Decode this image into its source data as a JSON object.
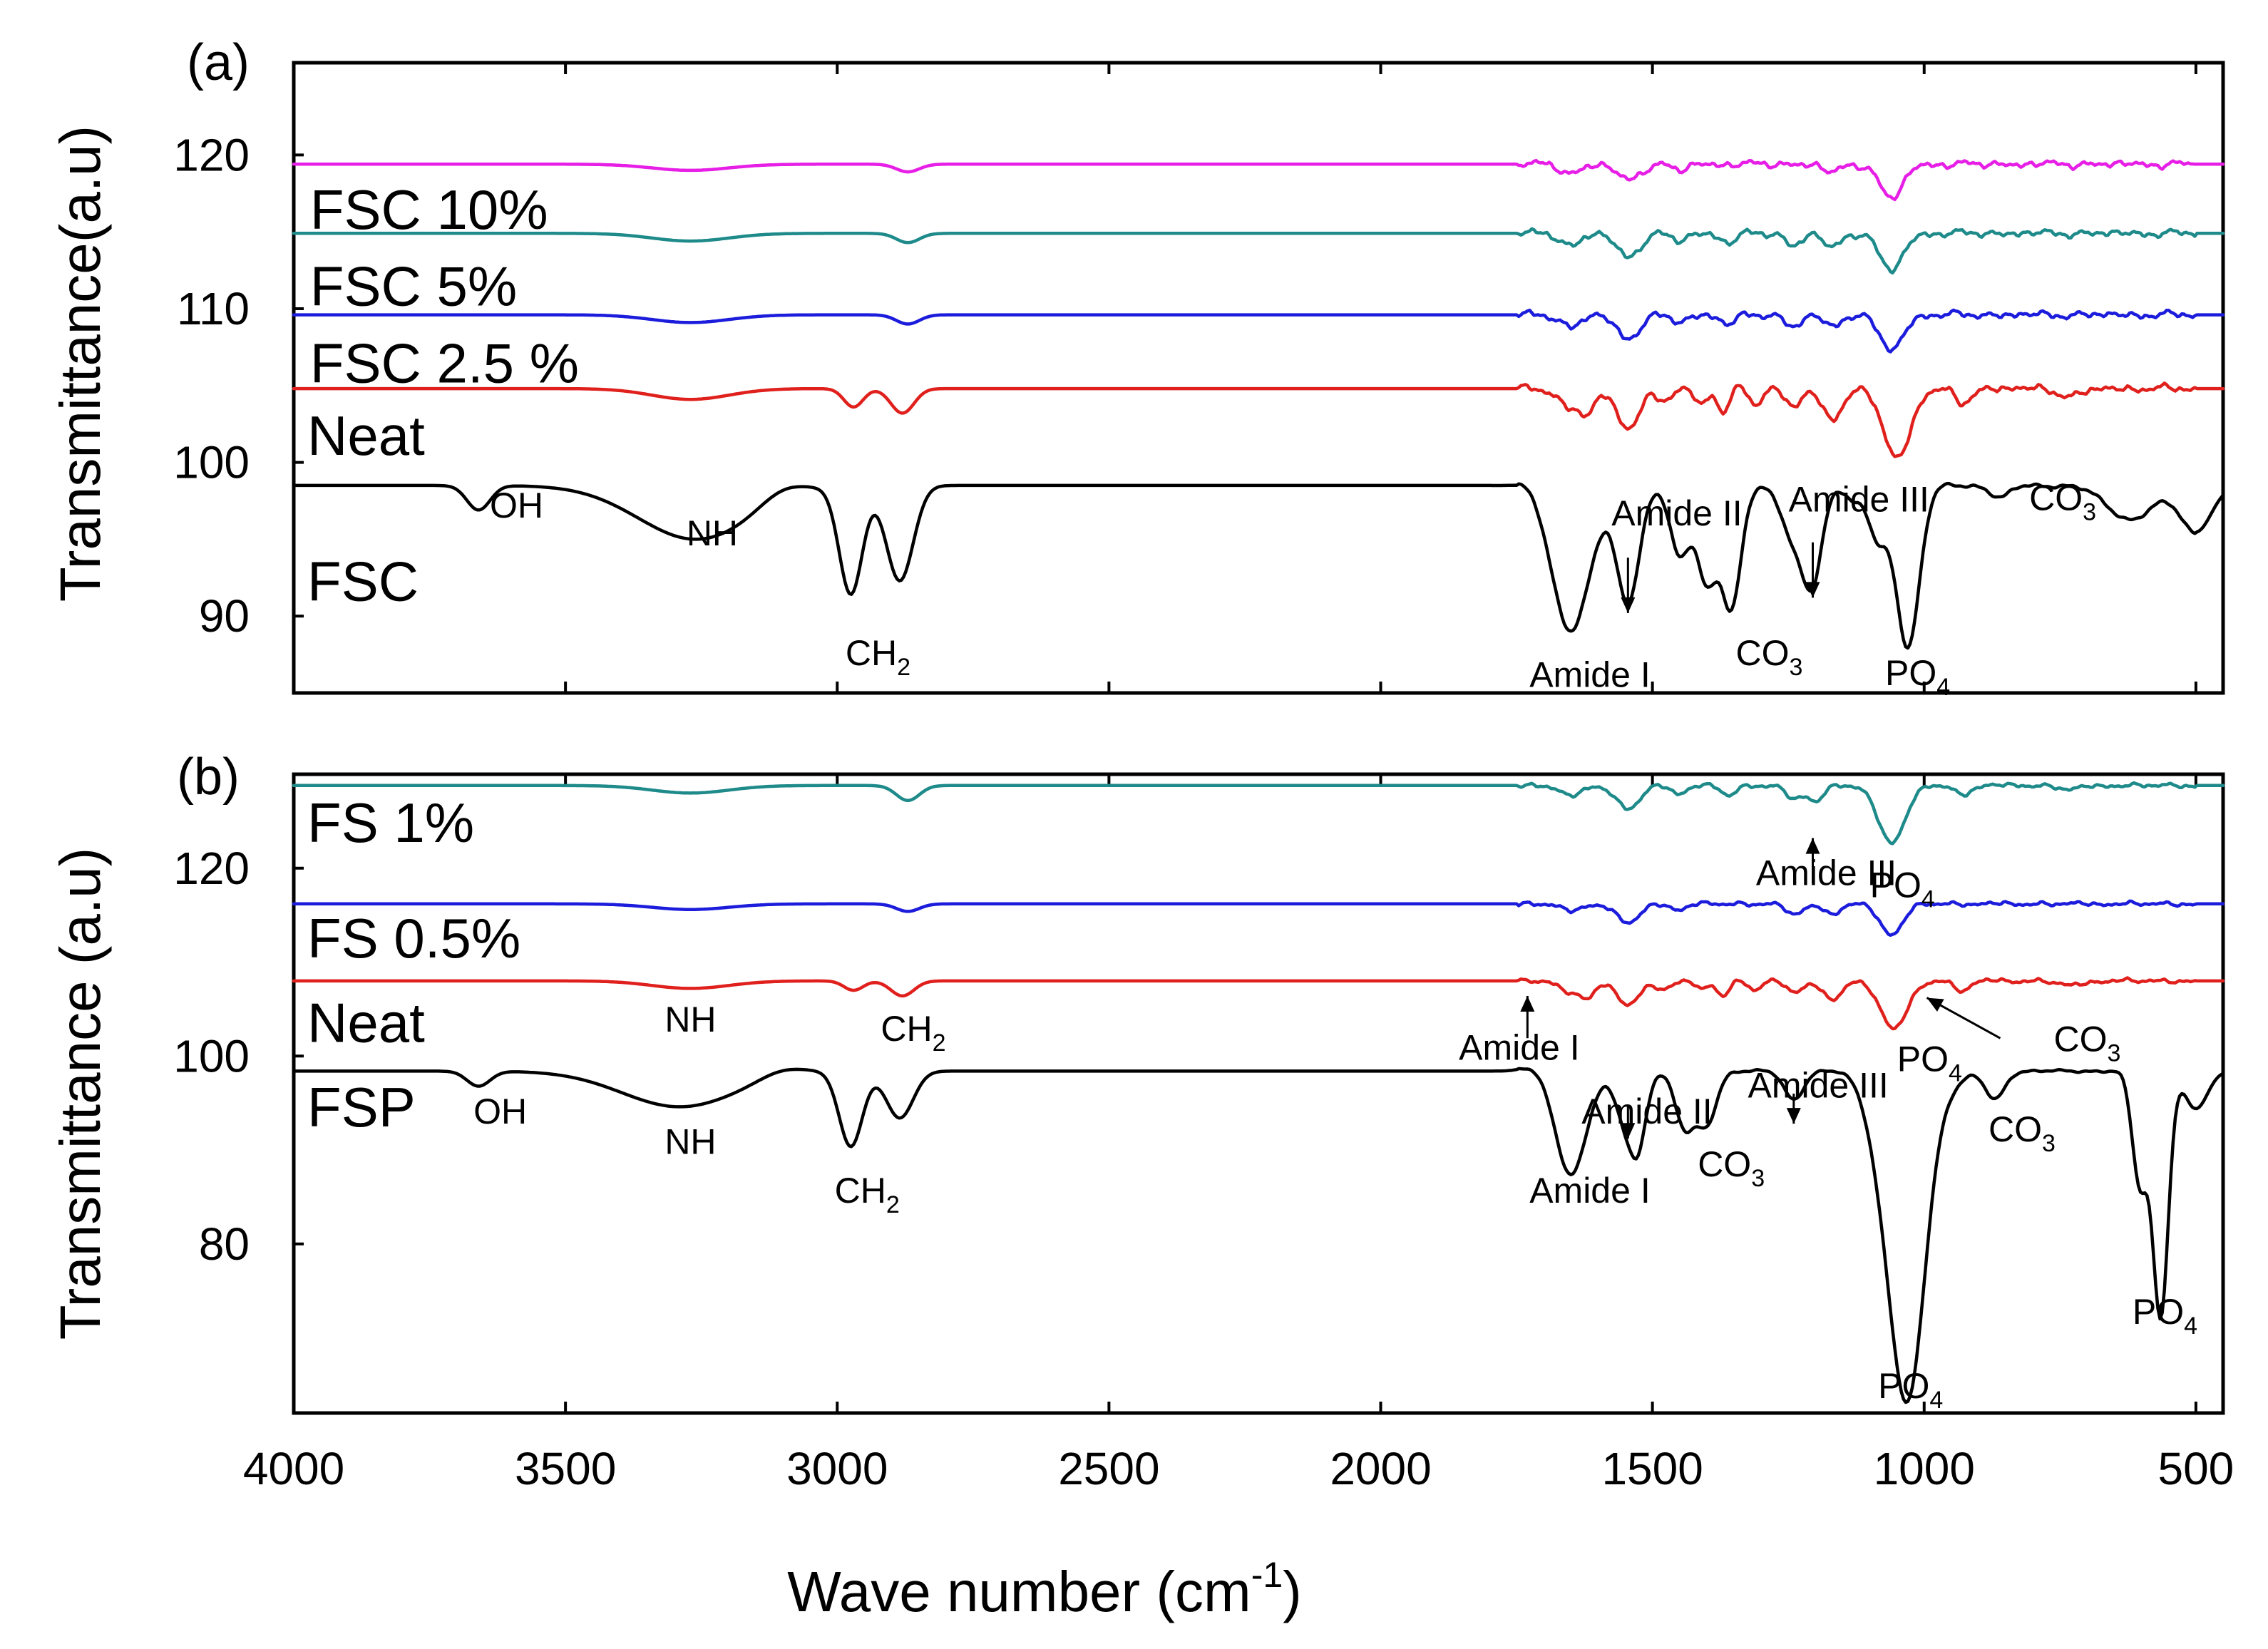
{
  "chart_data": [
    {
      "type": "line",
      "panel_label": "(a)",
      "xlabel": "Wave number (cm-1)",
      "xlabel_main": "Wave number (cm",
      "xlabel_sup": "-1",
      "xlabel_close": ")",
      "ylabel": "Transmittance(a.u)",
      "xlim": [
        4000,
        450
      ],
      "ylim": [
        85,
        126
      ],
      "x_ticks": [
        4000,
        3500,
        3000,
        2500,
        2000,
        1500,
        1000,
        500
      ],
      "y_ticks": [
        90,
        100,
        110,
        120
      ],
      "series": [
        {
          "name": "FSC",
          "label": "FSC",
          "color": "#000000",
          "base": 98.5,
          "label_y": 91,
          "label_x": 3975,
          "bands": [
            [
              3660,
              1.6,
              30
            ],
            [
              3260,
              3.5,
              150
            ],
            [
              3100,
              -0.8,
              60
            ],
            [
              2975,
              7,
              30
            ],
            [
              2885,
              6.2,
              35
            ],
            [
              1720,
              -0.5,
              30
            ],
            [
              1650,
              9.5,
              50
            ],
            [
              1545,
              7.5,
              30
            ],
            [
              1450,
              4.5,
              25
            ],
            [
              1400,
              6.3,
              25
            ],
            [
              1355,
              8,
              25
            ],
            [
              1240,
              3.5,
              30
            ],
            [
              1205,
              5.8,
              25
            ],
            [
              1130,
              1,
              20
            ],
            [
              1030,
              10.5,
              30
            ],
            [
              1085,
              3.5,
              25
            ],
            [
              860,
              0.8,
              25
            ],
            [
              620,
              2.2,
              60
            ],
            [
              500,
              3,
              40
            ]
          ]
        },
        {
          "name": "Neat",
          "label": "Neat",
          "color": "#e0201c",
          "base": 104.8,
          "label_y": 100.5,
          "label_x": 3975,
          "bands": [
            [
              3270,
              0.7,
              100
            ],
            [
              2970,
              1.2,
              25
            ],
            [
              2880,
              1.6,
              30
            ],
            [
              1655,
              1.2,
              25
            ],
            [
              1620,
              1.6,
              20
            ],
            [
              1545,
              2.5,
              30
            ],
            [
              1480,
              0.8,
              20
            ],
            [
              1410,
              1,
              15
            ],
            [
              1370,
              1.6,
              15
            ],
            [
              1310,
              1,
              15
            ],
            [
              1240,
              1.2,
              20
            ],
            [
              1170,
              2,
              25
            ],
            [
              1050,
              4.5,
              35
            ],
            [
              930,
              1,
              20
            ],
            [
              730,
              0.5,
              30
            ]
          ]
        },
        {
          "name": "FSC 2.5 %",
          "label": "FSC 2.5 %",
          "color": "#1c1cdc",
          "base": 109.6,
          "label_y": 105.2,
          "label_x": 3970,
          "bands": [
            [
              3270,
              0.5,
              100
            ],
            [
              2870,
              0.6,
              30
            ],
            [
              1650,
              0.8,
              25
            ],
            [
              1545,
              1.5,
              30
            ],
            [
              1450,
              0.5,
              20
            ],
            [
              1360,
              0.6,
              20
            ],
            [
              1240,
              0.8,
              20
            ],
            [
              1170,
              0.8,
              20
            ],
            [
              1060,
              2.3,
              30
            ]
          ]
        },
        {
          "name": "FSC 5%",
          "label": "FSC 5%",
          "color": "#1e8a8a",
          "base": 114.9,
          "label_y": 110.2,
          "label_x": 3970,
          "bands": [
            [
              3270,
              0.5,
              100
            ],
            [
              2870,
              0.6,
              30
            ],
            [
              1650,
              0.8,
              25
            ],
            [
              1545,
              1.5,
              30
            ],
            [
              1450,
              0.5,
              20
            ],
            [
              1360,
              0.6,
              20
            ],
            [
              1240,
              0.8,
              20
            ],
            [
              1170,
              1,
              20
            ],
            [
              1060,
              2.4,
              30
            ]
          ]
        },
        {
          "name": "FSC 10%",
          "label": "FSC 10%",
          "color": "#e61ee6",
          "base": 119.4,
          "label_y": 115.2,
          "label_x": 3970,
          "bands": [
            [
              3270,
              0.4,
              100
            ],
            [
              2870,
              0.5,
              30
            ],
            [
              1650,
              0.6,
              25
            ],
            [
              1545,
              1,
              30
            ],
            [
              1450,
              0.4,
              20
            ],
            [
              1170,
              0.6,
              20
            ],
            [
              1060,
              2.2,
              30
            ]
          ]
        }
      ],
      "annotations": [
        {
          "text": "OH",
          "x": 3590,
          "y": 96.4
        },
        {
          "text": "NH",
          "x": 3230,
          "y": 94.6
        },
        {
          "text": "CH",
          "sub": "2",
          "x": 2925,
          "y": 86.8
        },
        {
          "text": "Amide II",
          "x": 1455,
          "y": 95.9
        },
        {
          "text": "Amide III",
          "x": 1120,
          "y": 96.8
        },
        {
          "text": "CO",
          "sub": "3",
          "x": 745,
          "y": 96.9
        },
        {
          "text": "Amide I",
          "x": 1615,
          "y": 85.4
        },
        {
          "text": "CO",
          "sub": "3",
          "x": 1285,
          "y": 86.8
        },
        {
          "text": "PO",
          "sub": "4",
          "x": 1012,
          "y": 85.5
        }
      ],
      "arrows": [
        {
          "from": [
            1545,
            93.8
          ],
          "to": [
            1545,
            90.2
          ]
        },
        {
          "from": [
            1205,
            94.8
          ],
          "to": [
            1205,
            91.2
          ]
        }
      ]
    },
    {
      "type": "line",
      "panel_label": "(b)",
      "xlabel": "Wave number (cm-1)",
      "ylabel": "Transmittance (a.u)",
      "xlim": [
        4000,
        450
      ],
      "ylim": [
        62,
        130
      ],
      "x_ticks": [
        4000,
        3500,
        3000,
        2500,
        2000,
        1500,
        1000,
        500
      ],
      "y_ticks": [
        80,
        100,
        120
      ],
      "series": [
        {
          "name": "FSP",
          "label": "FSP",
          "color": "#000000",
          "base": 98.4,
          "label_y": 92.5,
          "label_x": 3975,
          "bands": [
            [
              3660,
              1.6,
              30
            ],
            [
              3290,
              3.8,
              150
            ],
            [
              3100,
              -0.8,
              60
            ],
            [
              2975,
              8,
              30
            ],
            [
              2885,
              5,
              35
            ],
            [
              1720,
              -0.5,
              30
            ],
            [
              1650,
              11,
              40
            ],
            [
              1545,
              6,
              30
            ],
            [
              1525,
              5,
              20
            ],
            [
              1440,
              6,
              25
            ],
            [
              1400,
              5.5,
              25
            ],
            [
              1240,
              3,
              25
            ],
            [
              1030,
              34,
              45
            ],
            [
              1080,
              6,
              40
            ],
            [
              870,
              3,
              25
            ],
            [
              960,
              1.5,
              40
            ],
            [
              603,
              12,
              20
            ],
            [
              565,
              26,
              20
            ],
            [
              500,
              4,
              30
            ]
          ]
        },
        {
          "name": "Neat",
          "label": "Neat",
          "color": "#e0201c",
          "base": 108,
          "label_y": 101.5,
          "label_x": 3975,
          "bands": [
            [
              3270,
              0.8,
              100
            ],
            [
              2970,
              1,
              25
            ],
            [
              2880,
              1.6,
              30
            ],
            [
              1655,
              1.2,
              25
            ],
            [
              1620,
              1.6,
              20
            ],
            [
              1545,
              2.5,
              30
            ],
            [
              1480,
              0.8,
              20
            ],
            [
              1410,
              1,
              15
            ],
            [
              1370,
              1.6,
              15
            ],
            [
              1310,
              1,
              15
            ],
            [
              1240,
              1.2,
              20
            ],
            [
              1170,
              2,
              25
            ],
            [
              1055,
              5,
              35
            ],
            [
              930,
              1,
              20
            ],
            [
              730,
              0.5,
              30
            ]
          ]
        },
        {
          "name": "FS 0.5%",
          "label": "FS 0.5%",
          "color": "#1c1cdc",
          "base": 116.2,
          "label_y": 110.5,
          "label_x": 3975,
          "bands": [
            [
              3270,
              0.6,
              100
            ],
            [
              2870,
              0.8,
              30
            ],
            [
              1650,
              0.8,
              25
            ],
            [
              1545,
              2,
              30
            ],
            [
              1450,
              0.6,
              20
            ],
            [
              1240,
              1.2,
              20
            ],
            [
              1170,
              1.2,
              20
            ],
            [
              1060,
              3.2,
              30
            ]
          ]
        },
        {
          "name": "FS 1%",
          "label": "FS 1%",
          "color": "#1e8a8a",
          "base": 128.8,
          "label_y": 122.8,
          "label_x": 3975,
          "bands": [
            [
              3270,
              0.8,
              100
            ],
            [
              2870,
              1.6,
              30
            ],
            [
              1650,
              1.2,
              25
            ],
            [
              1545,
              2.5,
              30
            ],
            [
              1450,
              0.8,
              20
            ],
            [
              1360,
              1,
              20
            ],
            [
              1240,
              1.5,
              20
            ],
            [
              1200,
              1.6,
              20
            ],
            [
              1060,
              6,
              35
            ],
            [
              930,
              1,
              20
            ],
            [
              730,
              0.4,
              30
            ]
          ]
        }
      ],
      "annotations": [
        {
          "text": "Amide III",
          "x": 1180,
          "y": 118.2
        },
        {
          "text": "PO",
          "sub": "4",
          "x": 1040,
          "y": 116.9
        },
        {
          "text": "NH",
          "x": 3270,
          "y": 102.6
        },
        {
          "text": "CH",
          "sub": "2",
          "x": 2860,
          "y": 101.6
        },
        {
          "text": "Amide I",
          "x": 1745,
          "y": 99.6
        },
        {
          "text": "PO",
          "sub": "4",
          "x": 990,
          "y": 98.4
        },
        {
          "text": "CO",
          "sub": "3",
          "x": 700,
          "y": 100.5
        },
        {
          "text": "OH",
          "x": 3620,
          "y": 92.8
        },
        {
          "text": "NH",
          "x": 3270,
          "y": 89.6
        },
        {
          "text": "Amide II",
          "x": 1510,
          "y": 92.8
        },
        {
          "text": "Amide III",
          "x": 1195,
          "y": 95.6
        },
        {
          "text": "CO",
          "sub": "3",
          "x": 1355,
          "y": 87.2
        },
        {
          "text": "CO",
          "sub": "3",
          "x": 820,
          "y": 90.9
        },
        {
          "text": "CH",
          "sub": "2",
          "x": 2945,
          "y": 84.4
        },
        {
          "text": "Amide I",
          "x": 1615,
          "y": 84.4
        },
        {
          "text": "PO",
          "sub": "4",
          "x": 1025,
          "y": 63.6
        },
        {
          "text": "PO",
          "sub": "4",
          "x": 557,
          "y": 71.5
        }
      ],
      "arrows": [
        {
          "from": [
            1205,
            118.4
          ],
          "to": [
            1205,
            123.2
          ]
        },
        {
          "from": [
            1730,
            101.9
          ],
          "to": [
            1730,
            106.4
          ]
        },
        {
          "from": [
            860,
            101.9
          ],
          "to": [
            995,
            106.2
          ]
        },
        {
          "from": [
            1240,
            96
          ],
          "to": [
            1240,
            92.8
          ]
        },
        {
          "from": [
            1545,
            94.6
          ],
          "to": [
            1545,
            91.2
          ]
        }
      ]
    }
  ]
}
